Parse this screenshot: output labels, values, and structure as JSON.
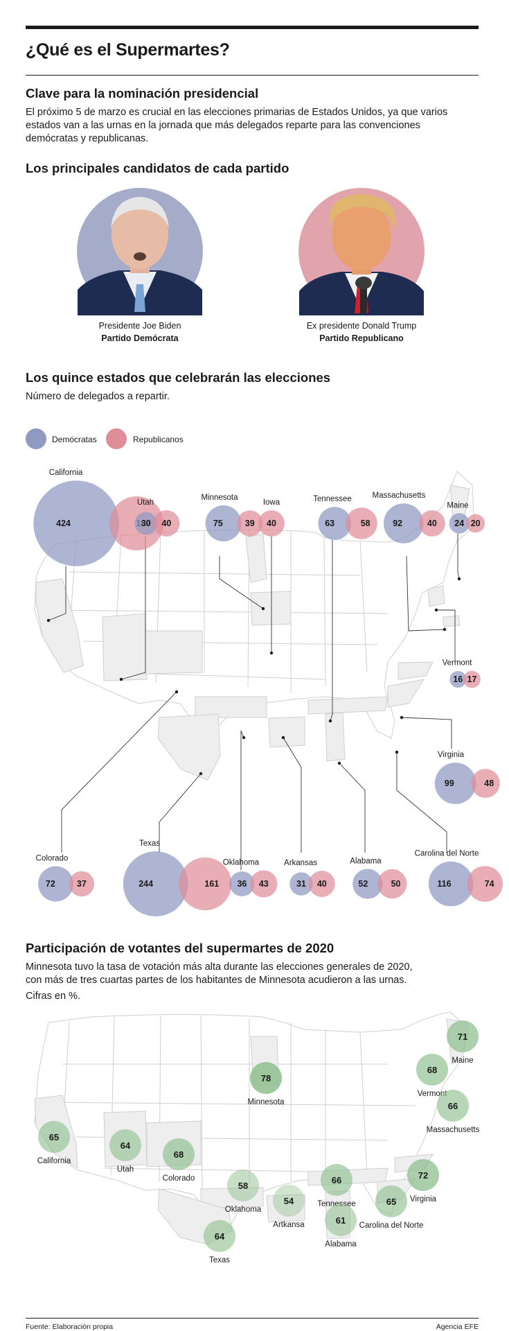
{
  "header": {
    "title": "¿Qué es el Supermartes?"
  },
  "intro": {
    "heading": "Clave para la nominación presidencial",
    "body_lines": [
      "El próximo 5 de marzo es crucial en las elecciones primarias de Estados Unidos, ya que varios",
      "estados van a las urnas en la jornada que más delegados reparte para las convenciones",
      "demócratas y republicanas."
    ]
  },
  "candidates": {
    "heading": "Los principales candidatos de cada partido",
    "items": [
      {
        "name": "Presidente Joe Biden",
        "party": "Partido Demócrata",
        "color": "#a4acca"
      },
      {
        "name": "Ex presidente Donald Trump",
        "party": "Partido Republicano",
        "color": "#e2a4ac"
      }
    ]
  },
  "delegates": {
    "heading": "Los quince estados que celebrarán las elecciones",
    "subheading": "Número de delegados a repartir.",
    "legend": [
      {
        "label": "Demócratas",
        "color": "#8f99c2"
      },
      {
        "label": "Republicanos",
        "color": "#df8d99"
      }
    ]
  },
  "turnout": {
    "heading": "Participación de votantes del supermartes de 2020",
    "body_lines": [
      "Minnesota tuvo la tasa de votación más alta durante las elecciones generales de 2020,",
      "con más de tres cuartas partes de los habitantes de Minnesota acudieron a las urnas."
    ],
    "units_note": "Cifras en %.",
    "color": "#8fbf8f"
  },
  "footer": {
    "source": "Fuente: Elaboración propia",
    "agency": "Agencia EFE"
  },
  "chart_data": [
    {
      "type": "bubble",
      "title": "Los quince estados que celebrarán las elecciones",
      "series": [
        {
          "name": "Demócratas",
          "color": "#8f99c2"
        },
        {
          "name": "Republicanos",
          "color": "#df8d99"
        }
      ],
      "categories": [
        "California",
        "Utah",
        "Minnesota",
        "Iowa",
        "Tennessee",
        "Massachusetts",
        "Maine",
        "Vermont",
        "Virginia",
        "Colorado",
        "Texas",
        "Oklahoma",
        "Arkansas",
        "Alabama",
        "Carolina del Norte"
      ],
      "states": [
        {
          "name": "California",
          "dem": 424,
          "rep": 169
        },
        {
          "name": "Utah",
          "dem": 30,
          "rep": 40
        },
        {
          "name": "Minnesota",
          "dem": 75,
          "rep": 39
        },
        {
          "name": "Iowa",
          "dem": null,
          "rep": 40
        },
        {
          "name": "Tennessee",
          "dem": 63,
          "rep": 58
        },
        {
          "name": "Massachusetts",
          "dem": 92,
          "rep": 40
        },
        {
          "name": "Maine",
          "dem": 24,
          "rep": 20
        },
        {
          "name": "Vermont",
          "dem": 16,
          "rep": 17
        },
        {
          "name": "Virginia",
          "dem": 99,
          "rep": 48
        },
        {
          "name": "Colorado",
          "dem": 72,
          "rep": 37
        },
        {
          "name": "Texas",
          "dem": 244,
          "rep": 161
        },
        {
          "name": "Oklahoma",
          "dem": 36,
          "rep": 43
        },
        {
          "name": "Arkansas",
          "dem": 31,
          "rep": 40
        },
        {
          "name": "Alabama",
          "dem": 52,
          "rep": 50
        },
        {
          "name": "Carolina del Norte",
          "dem": 116,
          "rep": 74
        }
      ]
    },
    {
      "type": "bubble",
      "title": "Participación de votantes del supermartes de 2020",
      "units": "%",
      "states": [
        {
          "name": "Maine",
          "value": 71
        },
        {
          "name": "Minnesota",
          "value": 78
        },
        {
          "name": "Vermont",
          "value": 68
        },
        {
          "name": "Massachusetts",
          "value": 66
        },
        {
          "name": "California",
          "value": 65
        },
        {
          "name": "Utah",
          "value": 64
        },
        {
          "name": "Colorado",
          "value": 68
        },
        {
          "name": "Oklahoma",
          "value": 58
        },
        {
          "name": "Tennessee",
          "value": 66
        },
        {
          "name": "Virginia",
          "value": 72
        },
        {
          "name": "Artkansa",
          "value": 54
        },
        {
          "name": "Carolina del Norte",
          "value": 65
        },
        {
          "name": "Alabama",
          "value": 61
        },
        {
          "name": "Texas",
          "value": 64
        }
      ]
    }
  ]
}
